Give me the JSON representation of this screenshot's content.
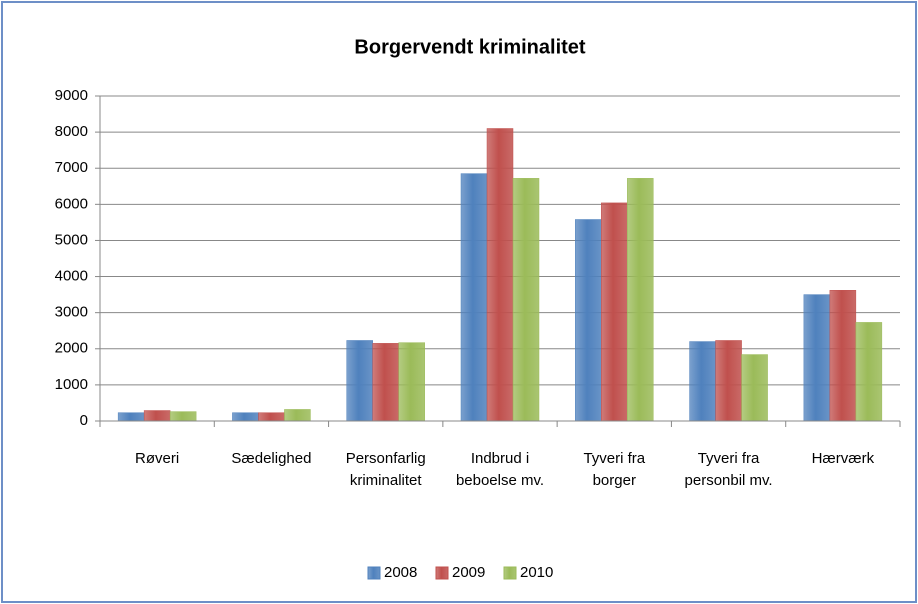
{
  "chart_data": {
    "type": "bar",
    "title": "Borgervendt kriminalitet",
    "categories": [
      "Røveri",
      "Sædelighed",
      "Personfarlig kriminalitet",
      "Indbrud i beboelse mv.",
      "Tyveri fra borger",
      "Tyveri fra personbil mv.",
      "Hærværk"
    ],
    "series": [
      {
        "name": "2008",
        "color": "#4f81bd",
        "values": [
          230,
          230,
          2230,
          6850,
          5580,
          2200,
          3500
        ]
      },
      {
        "name": "2009",
        "color": "#c0504d",
        "values": [
          290,
          230,
          2150,
          8100,
          6040,
          2230,
          3620
        ]
      },
      {
        "name": "2010",
        "color": "#9bbb59",
        "values": [
          260,
          320,
          2170,
          6720,
          6720,
          1840,
          2730
        ]
      }
    ],
    "ylim": [
      0,
      9000
    ],
    "yticks": [
      0,
      1000,
      2000,
      3000,
      4000,
      5000,
      6000,
      7000,
      8000,
      9000
    ],
    "grid": true,
    "legend": "bottom"
  }
}
